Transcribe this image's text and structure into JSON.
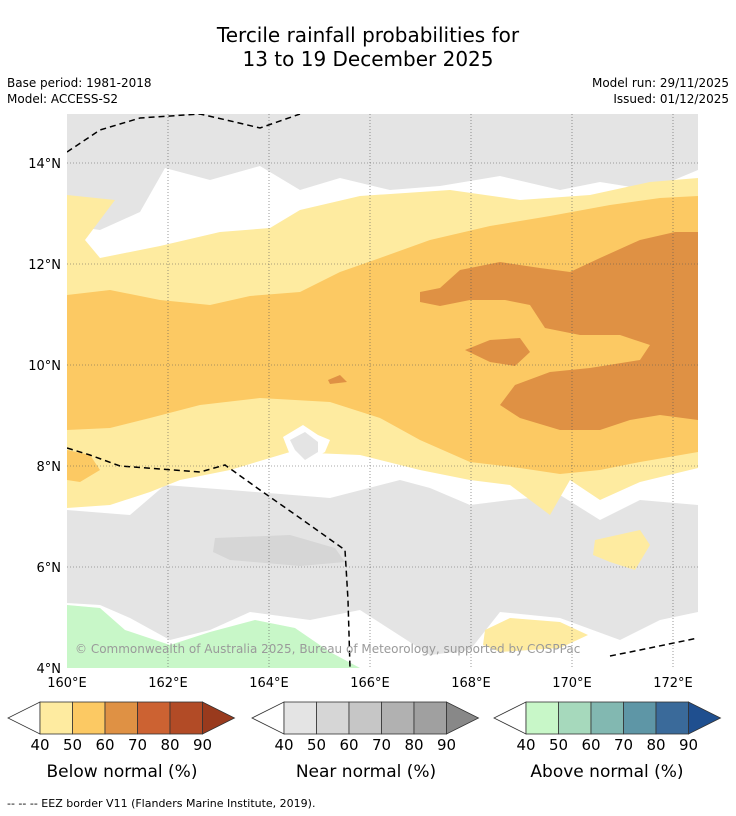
{
  "title": {
    "line1": "Tercile rainfall probabilities for",
    "line2": "13 to 19 December 2025"
  },
  "meta": {
    "base_period": "Base period: 1981-2018",
    "model": "Model: ACCESS-S2",
    "model_run": "Model run: 29/11/2025",
    "issued": "Issued: 01/12/2025"
  },
  "map": {
    "lat_ticks": [
      "14°N",
      "12°N",
      "10°N",
      "8°N",
      "6°N",
      "4°N"
    ],
    "lon_ticks": [
      "160°E",
      "162°E",
      "164°E",
      "166°E",
      "168°E",
      "170°E",
      "172°E"
    ],
    "copyright": "© Commonwealth of Australia 2025, Bureau of Meteorology, supported by COSPPac"
  },
  "legends": [
    {
      "title": "Below normal (%)",
      "ticks": [
        "40",
        "50",
        "60",
        "70",
        "80",
        "90"
      ],
      "colors": [
        "#feeba0",
        "#fcc963",
        "#df9144",
        "#cc6232",
        "#b24b26",
        "#993a1d"
      ]
    },
    {
      "title": "Near normal (%)",
      "ticks": [
        "40",
        "50",
        "60",
        "70",
        "80",
        "90"
      ],
      "colors": [
        "#e4e4e4",
        "#d6d6d6",
        "#c6c6c6",
        "#b1b1b1",
        "#a0a0a0",
        "#888888"
      ]
    },
    {
      "title": "Above normal (%)",
      "ticks": [
        "40",
        "50",
        "60",
        "70",
        "80",
        "90"
      ],
      "colors": [
        "#c8f7c8",
        "#a6d9bc",
        "#82b8b1",
        "#5e96a6",
        "#3a6a9a",
        "#1f4f8f"
      ]
    }
  ],
  "footnote": "--  --  -- EEZ border V11 (Flanders Marine Institute, 2019)."
}
